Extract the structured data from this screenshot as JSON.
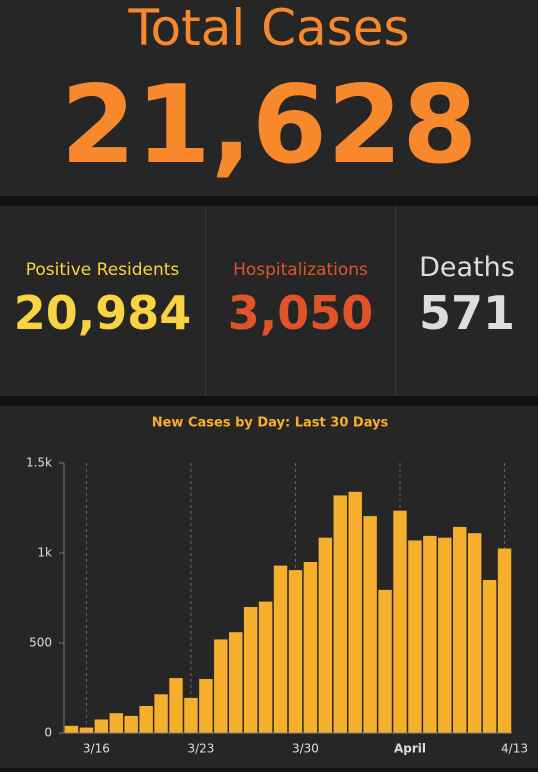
{
  "header": {
    "title": "Total Cases",
    "value": "21,628"
  },
  "stats": [
    {
      "label": "Positive Residents",
      "value": "20,984"
    },
    {
      "label": "Hospitalizations",
      "value": "3,050"
    },
    {
      "label": "Deaths",
      "value": "571"
    }
  ],
  "chart_data": {
    "type": "bar",
    "title": "New Cases by Day: Last 30 Days",
    "categories": [
      null,
      "3/16",
      null,
      null,
      null,
      null,
      null,
      null,
      "3/23",
      null,
      null,
      null,
      null,
      null,
      null,
      "3/30",
      null,
      null,
      null,
      null,
      null,
      null,
      "April",
      null,
      null,
      null,
      null,
      null,
      null,
      "4/13"
    ],
    "values": [
      40,
      30,
      75,
      110,
      95,
      150,
      215,
      305,
      195,
      300,
      520,
      560,
      700,
      730,
      930,
      905,
      950,
      1085,
      1320,
      1340,
      1205,
      795,
      1235,
      1070,
      1095,
      1085,
      1145,
      1110,
      850,
      1025
    ],
    "color": "#f6ae2d",
    "ylim": [
      0,
      1500
    ],
    "yticks": [
      0,
      500,
      {
        "value": 1000,
        "label": "1k"
      },
      {
        "value": 1500,
        "label": "1.5k"
      }
    ],
    "grid": "x"
  }
}
